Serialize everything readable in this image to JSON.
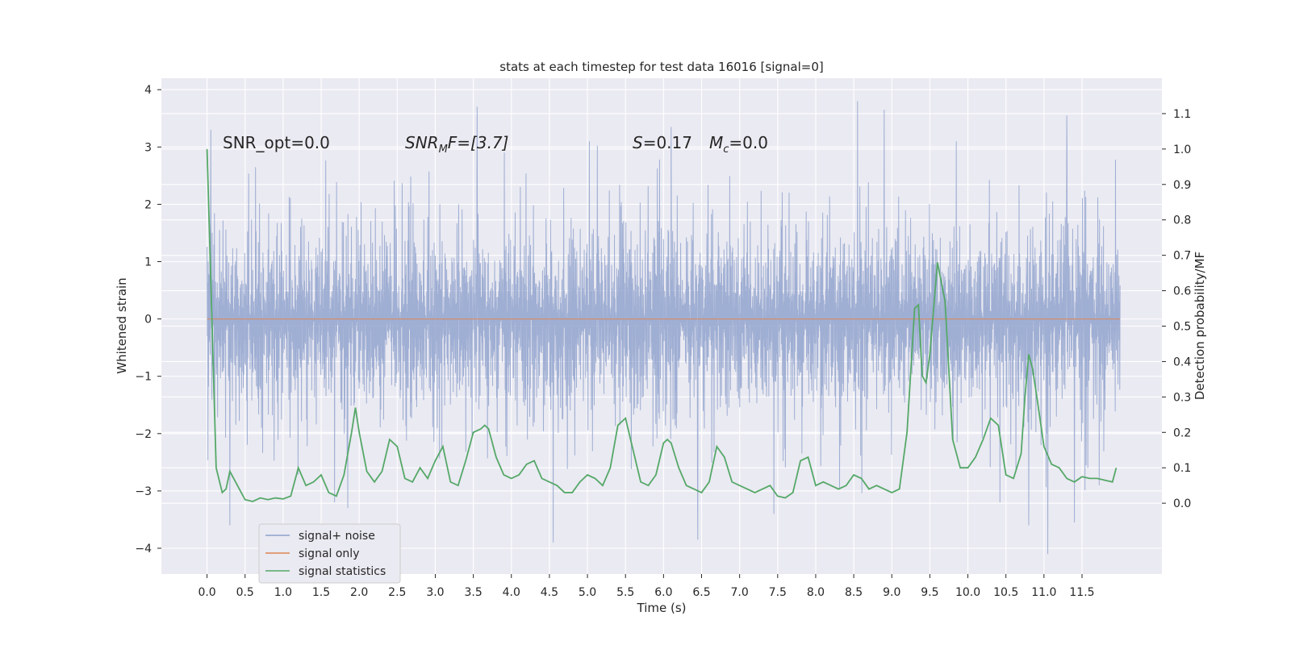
{
  "chart_data": {
    "type": "line",
    "title": "stats at each timestep for test data 16016 [signal=0]",
    "xlabel": "Time (s)",
    "ylabel": "Whitened strain",
    "y2label": "Detection probability/MF",
    "xlim": [
      -0.6,
      12.55
    ],
    "ylim": [
      -4.45,
      4.2
    ],
    "y2lim": [
      -0.2,
      1.2
    ],
    "xticks": [
      0.0,
      0.5,
      1.0,
      1.5,
      2.0,
      2.5,
      3.0,
      3.5,
      4.0,
      4.5,
      5.0,
      5.5,
      6.0,
      6.5,
      7.0,
      7.5,
      8.0,
      8.5,
      9.0,
      9.5,
      10.0,
      10.5,
      11.0,
      11.5
    ],
    "xtick_labels": [
      "0.0",
      "0.5",
      "1.0",
      "1.5",
      "2.0",
      "2.5",
      "3.0",
      "3.5",
      "4.0",
      "4.5",
      "5.0",
      "5.5",
      "6.0",
      "6.5",
      "7.0",
      "7.5",
      "8.0",
      "8.5",
      "9.0",
      "9.5",
      "10.0",
      "10.5",
      "11.0",
      "11.5"
    ],
    "yticks": [
      -4,
      -3,
      -2,
      -1,
      0,
      1,
      2,
      3,
      4
    ],
    "ytick_labels": [
      "−4",
      "−3",
      "−2",
      "−1",
      "0",
      "1",
      "2",
      "3",
      "4"
    ],
    "y2ticks": [
      0.0,
      0.1,
      0.2,
      0.3,
      0.4,
      0.5,
      0.6,
      0.7,
      0.8,
      0.9,
      1.0,
      1.1
    ],
    "y2tick_labels": [
      "0.0",
      "0.1",
      "0.2",
      "0.3",
      "0.4",
      "0.5",
      "0.6",
      "0.7",
      "0.8",
      "0.9",
      "1.0",
      "1.1"
    ],
    "grid": true,
    "legend_position": "lower-left",
    "annotations": {
      "snr_opt": "SNR_opt=0.0",
      "snr_mf_main": "SNR",
      "snr_mf_sub": "M",
      "snr_mf_tail": "F=[3.7]",
      "s_label": "S",
      "s_value": "=0.17",
      "mc_label": "M",
      "mc_sub": "c",
      "mc_value": "=0.0"
    },
    "series": [
      {
        "name": "signal+ noise",
        "axis": "left",
        "color": "#8c9fcb",
        "description_range": [
          0.0,
          12.0
        ],
        "typical_envelope": [
          -2.0,
          2.0
        ],
        "spikes_max": [
          [
            8.55,
            3.8
          ],
          [
            8.9,
            3.65
          ],
          [
            3.55,
            3.7
          ],
          [
            11.3,
            3.55
          ],
          [
            6.1,
            3.35
          ],
          [
            0.05,
            3.3
          ]
        ],
        "spikes_min": [
          [
            11.05,
            -4.1
          ],
          [
            4.55,
            -3.9
          ],
          [
            6.45,
            -3.85
          ],
          [
            0.3,
            -3.6
          ],
          [
            10.8,
            -3.6
          ],
          [
            11.4,
            -3.55
          ],
          [
            7.45,
            -3.4
          ],
          [
            1.85,
            -3.3
          ]
        ]
      },
      {
        "name": "signal only",
        "axis": "left",
        "color": "#dd8452",
        "x": [
          0.0,
          12.0
        ],
        "y": [
          0.0,
          0.0
        ]
      },
      {
        "name": "signal statistics",
        "axis": "right",
        "color": "#55a868",
        "x": [
          0.0,
          0.12,
          0.2,
          0.25,
          0.3,
          0.4,
          0.5,
          0.6,
          0.7,
          0.8,
          0.9,
          1.0,
          1.1,
          1.2,
          1.3,
          1.4,
          1.5,
          1.6,
          1.7,
          1.8,
          1.9,
          1.95,
          2.0,
          2.1,
          2.2,
          2.3,
          2.4,
          2.5,
          2.6,
          2.7,
          2.8,
          2.9,
          3.0,
          3.1,
          3.2,
          3.3,
          3.4,
          3.5,
          3.6,
          3.65,
          3.7,
          3.8,
          3.9,
          4.0,
          4.1,
          4.2,
          4.3,
          4.4,
          4.5,
          4.6,
          4.7,
          4.8,
          4.9,
          5.0,
          5.1,
          5.2,
          5.3,
          5.4,
          5.5,
          5.6,
          5.7,
          5.8,
          5.9,
          6.0,
          6.05,
          6.1,
          6.2,
          6.3,
          6.4,
          6.5,
          6.6,
          6.7,
          6.8,
          6.9,
          7.0,
          7.1,
          7.2,
          7.3,
          7.4,
          7.5,
          7.6,
          7.7,
          7.8,
          7.9,
          8.0,
          8.1,
          8.2,
          8.3,
          8.4,
          8.5,
          8.6,
          8.7,
          8.8,
          8.9,
          9.0,
          9.1,
          9.2,
          9.3,
          9.35,
          9.4,
          9.45,
          9.5,
          9.6,
          9.7,
          9.8,
          9.9,
          10.0,
          10.1,
          10.2,
          10.3,
          10.4,
          10.5,
          10.6,
          10.7,
          10.75,
          10.8,
          10.85,
          10.9,
          11.0,
          11.1,
          11.2,
          11.3,
          11.4,
          11.5,
          11.6,
          11.7,
          11.8,
          11.9,
          11.95
        ],
        "y": [
          1.0,
          0.1,
          0.03,
          0.04,
          0.09,
          0.05,
          0.01,
          0.005,
          0.015,
          0.01,
          0.015,
          0.012,
          0.02,
          0.1,
          0.05,
          0.06,
          0.08,
          0.03,
          0.02,
          0.08,
          0.2,
          0.27,
          0.2,
          0.09,
          0.06,
          0.09,
          0.18,
          0.16,
          0.07,
          0.06,
          0.1,
          0.07,
          0.12,
          0.16,
          0.06,
          0.05,
          0.12,
          0.2,
          0.21,
          0.22,
          0.21,
          0.13,
          0.08,
          0.07,
          0.08,
          0.11,
          0.12,
          0.07,
          0.06,
          0.05,
          0.03,
          0.03,
          0.06,
          0.08,
          0.07,
          0.05,
          0.1,
          0.22,
          0.24,
          0.15,
          0.06,
          0.05,
          0.08,
          0.17,
          0.18,
          0.17,
          0.1,
          0.05,
          0.04,
          0.03,
          0.06,
          0.16,
          0.13,
          0.06,
          0.05,
          0.04,
          0.03,
          0.04,
          0.05,
          0.02,
          0.015,
          0.03,
          0.12,
          0.13,
          0.05,
          0.06,
          0.05,
          0.04,
          0.05,
          0.08,
          0.07,
          0.04,
          0.05,
          0.04,
          0.03,
          0.04,
          0.2,
          0.55,
          0.56,
          0.36,
          0.34,
          0.42,
          0.68,
          0.57,
          0.18,
          0.1,
          0.1,
          0.13,
          0.18,
          0.24,
          0.22,
          0.08,
          0.07,
          0.14,
          0.3,
          0.42,
          0.38,
          0.31,
          0.16,
          0.11,
          0.1,
          0.07,
          0.06,
          0.075,
          0.07,
          0.07,
          0.065,
          0.06,
          0.1
        ]
      }
    ]
  },
  "legend": {
    "items": [
      {
        "label": "signal+ noise",
        "color": "#8c9fcb"
      },
      {
        "label": "signal only",
        "color": "#dd8452"
      },
      {
        "label": "signal statistics",
        "color": "#55a868"
      }
    ]
  },
  "colors": {
    "axes_bg": "#eaeaf2",
    "grid": "#ffffff",
    "text": "#262626"
  }
}
